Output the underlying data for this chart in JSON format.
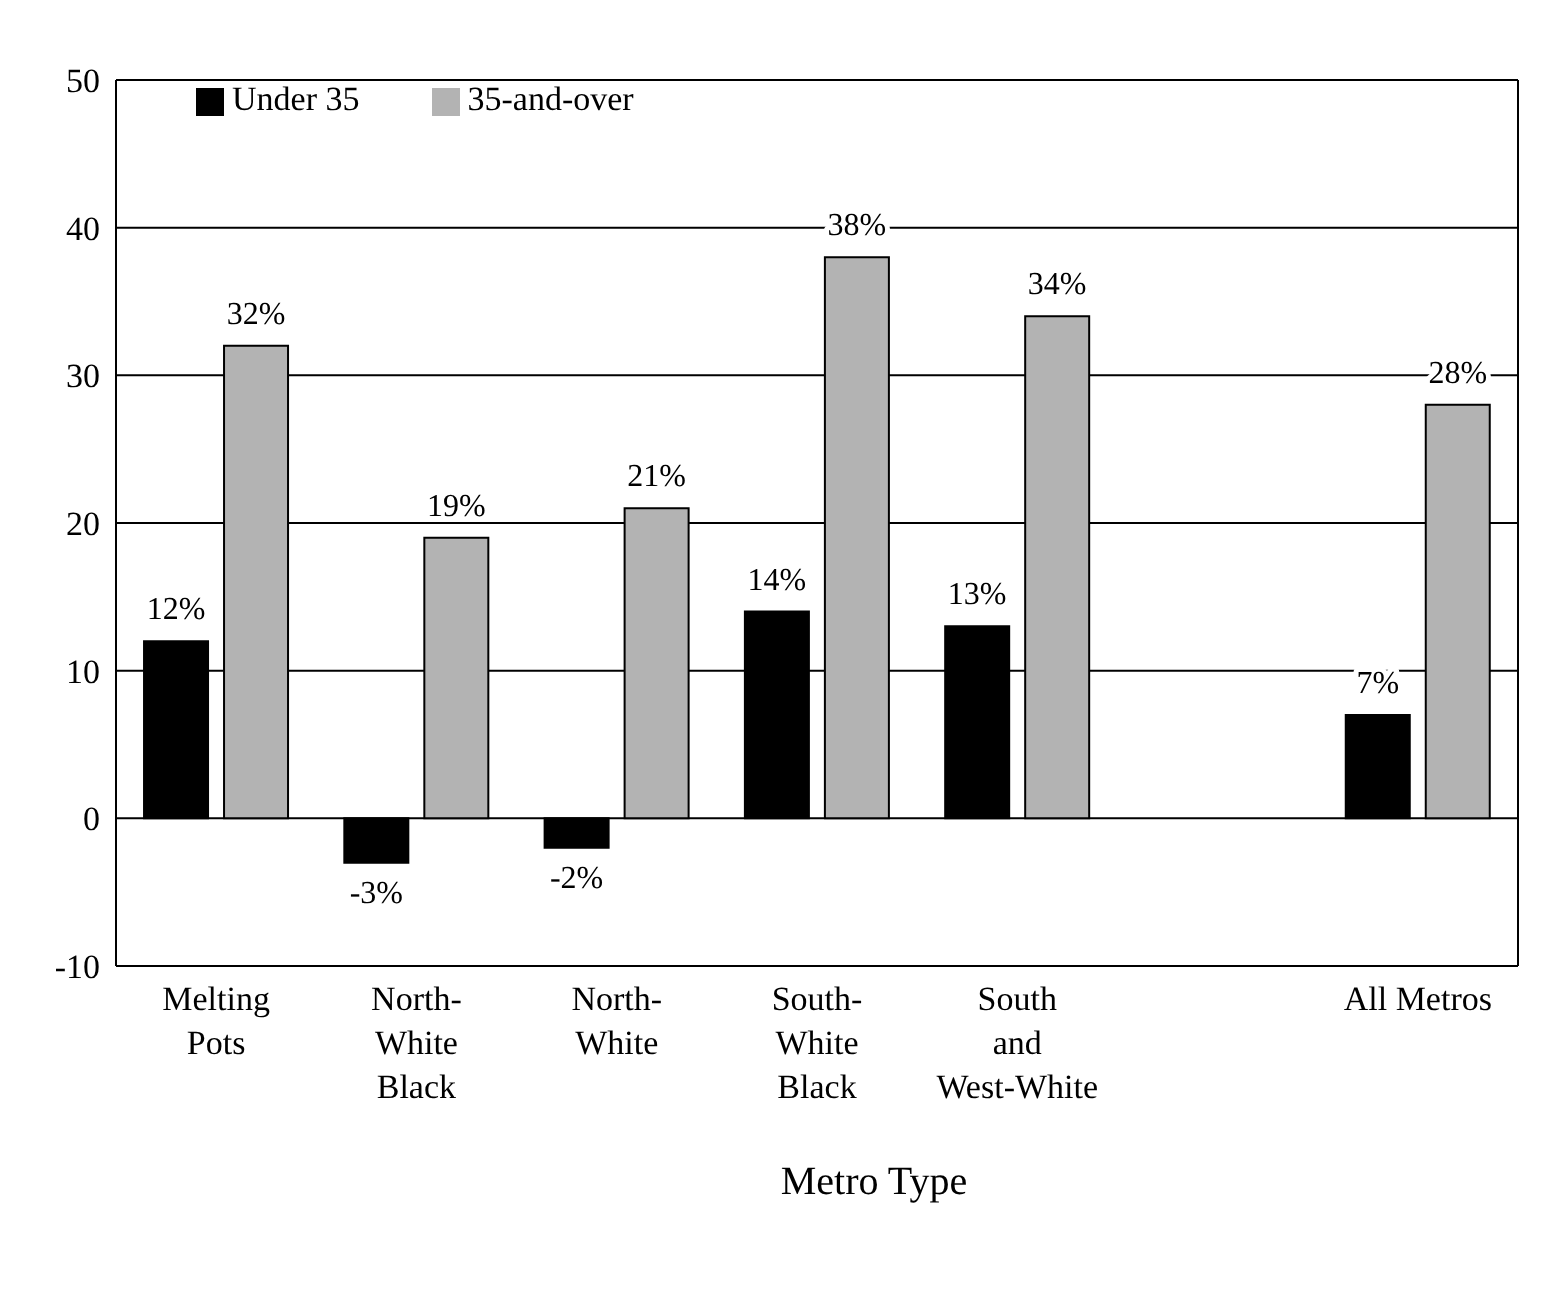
{
  "chart_data": {
    "type": "bar",
    "xlabel": "Metro Type",
    "categories": [
      "Melting\nPots",
      "North-\nWhite\nBlack",
      "North-\nWhite",
      "South-\nWhite\nBlack",
      "South\nand\nWest-White",
      null,
      "All Metros"
    ],
    "series": [
      {
        "name": "Under 35",
        "color": "#000000",
        "values": [
          12,
          -3,
          -2,
          14,
          13,
          null,
          7
        ],
        "value_labels": [
          "12%",
          "-3%",
          "-2%",
          "14%",
          "13%",
          null,
          "7%"
        ]
      },
      {
        "name": "35-and-over",
        "color": "#b3b3b3",
        "values": [
          32,
          19,
          21,
          38,
          34,
          null,
          28
        ],
        "value_labels": [
          "32%",
          "19%",
          "21%",
          "38%",
          "34%",
          null,
          "28%"
        ]
      }
    ],
    "ylim": [
      -10,
      50
    ],
    "yticks": [
      -10,
      0,
      10,
      20,
      30,
      40,
      50
    ],
    "grid": "y",
    "legend": "top left"
  }
}
